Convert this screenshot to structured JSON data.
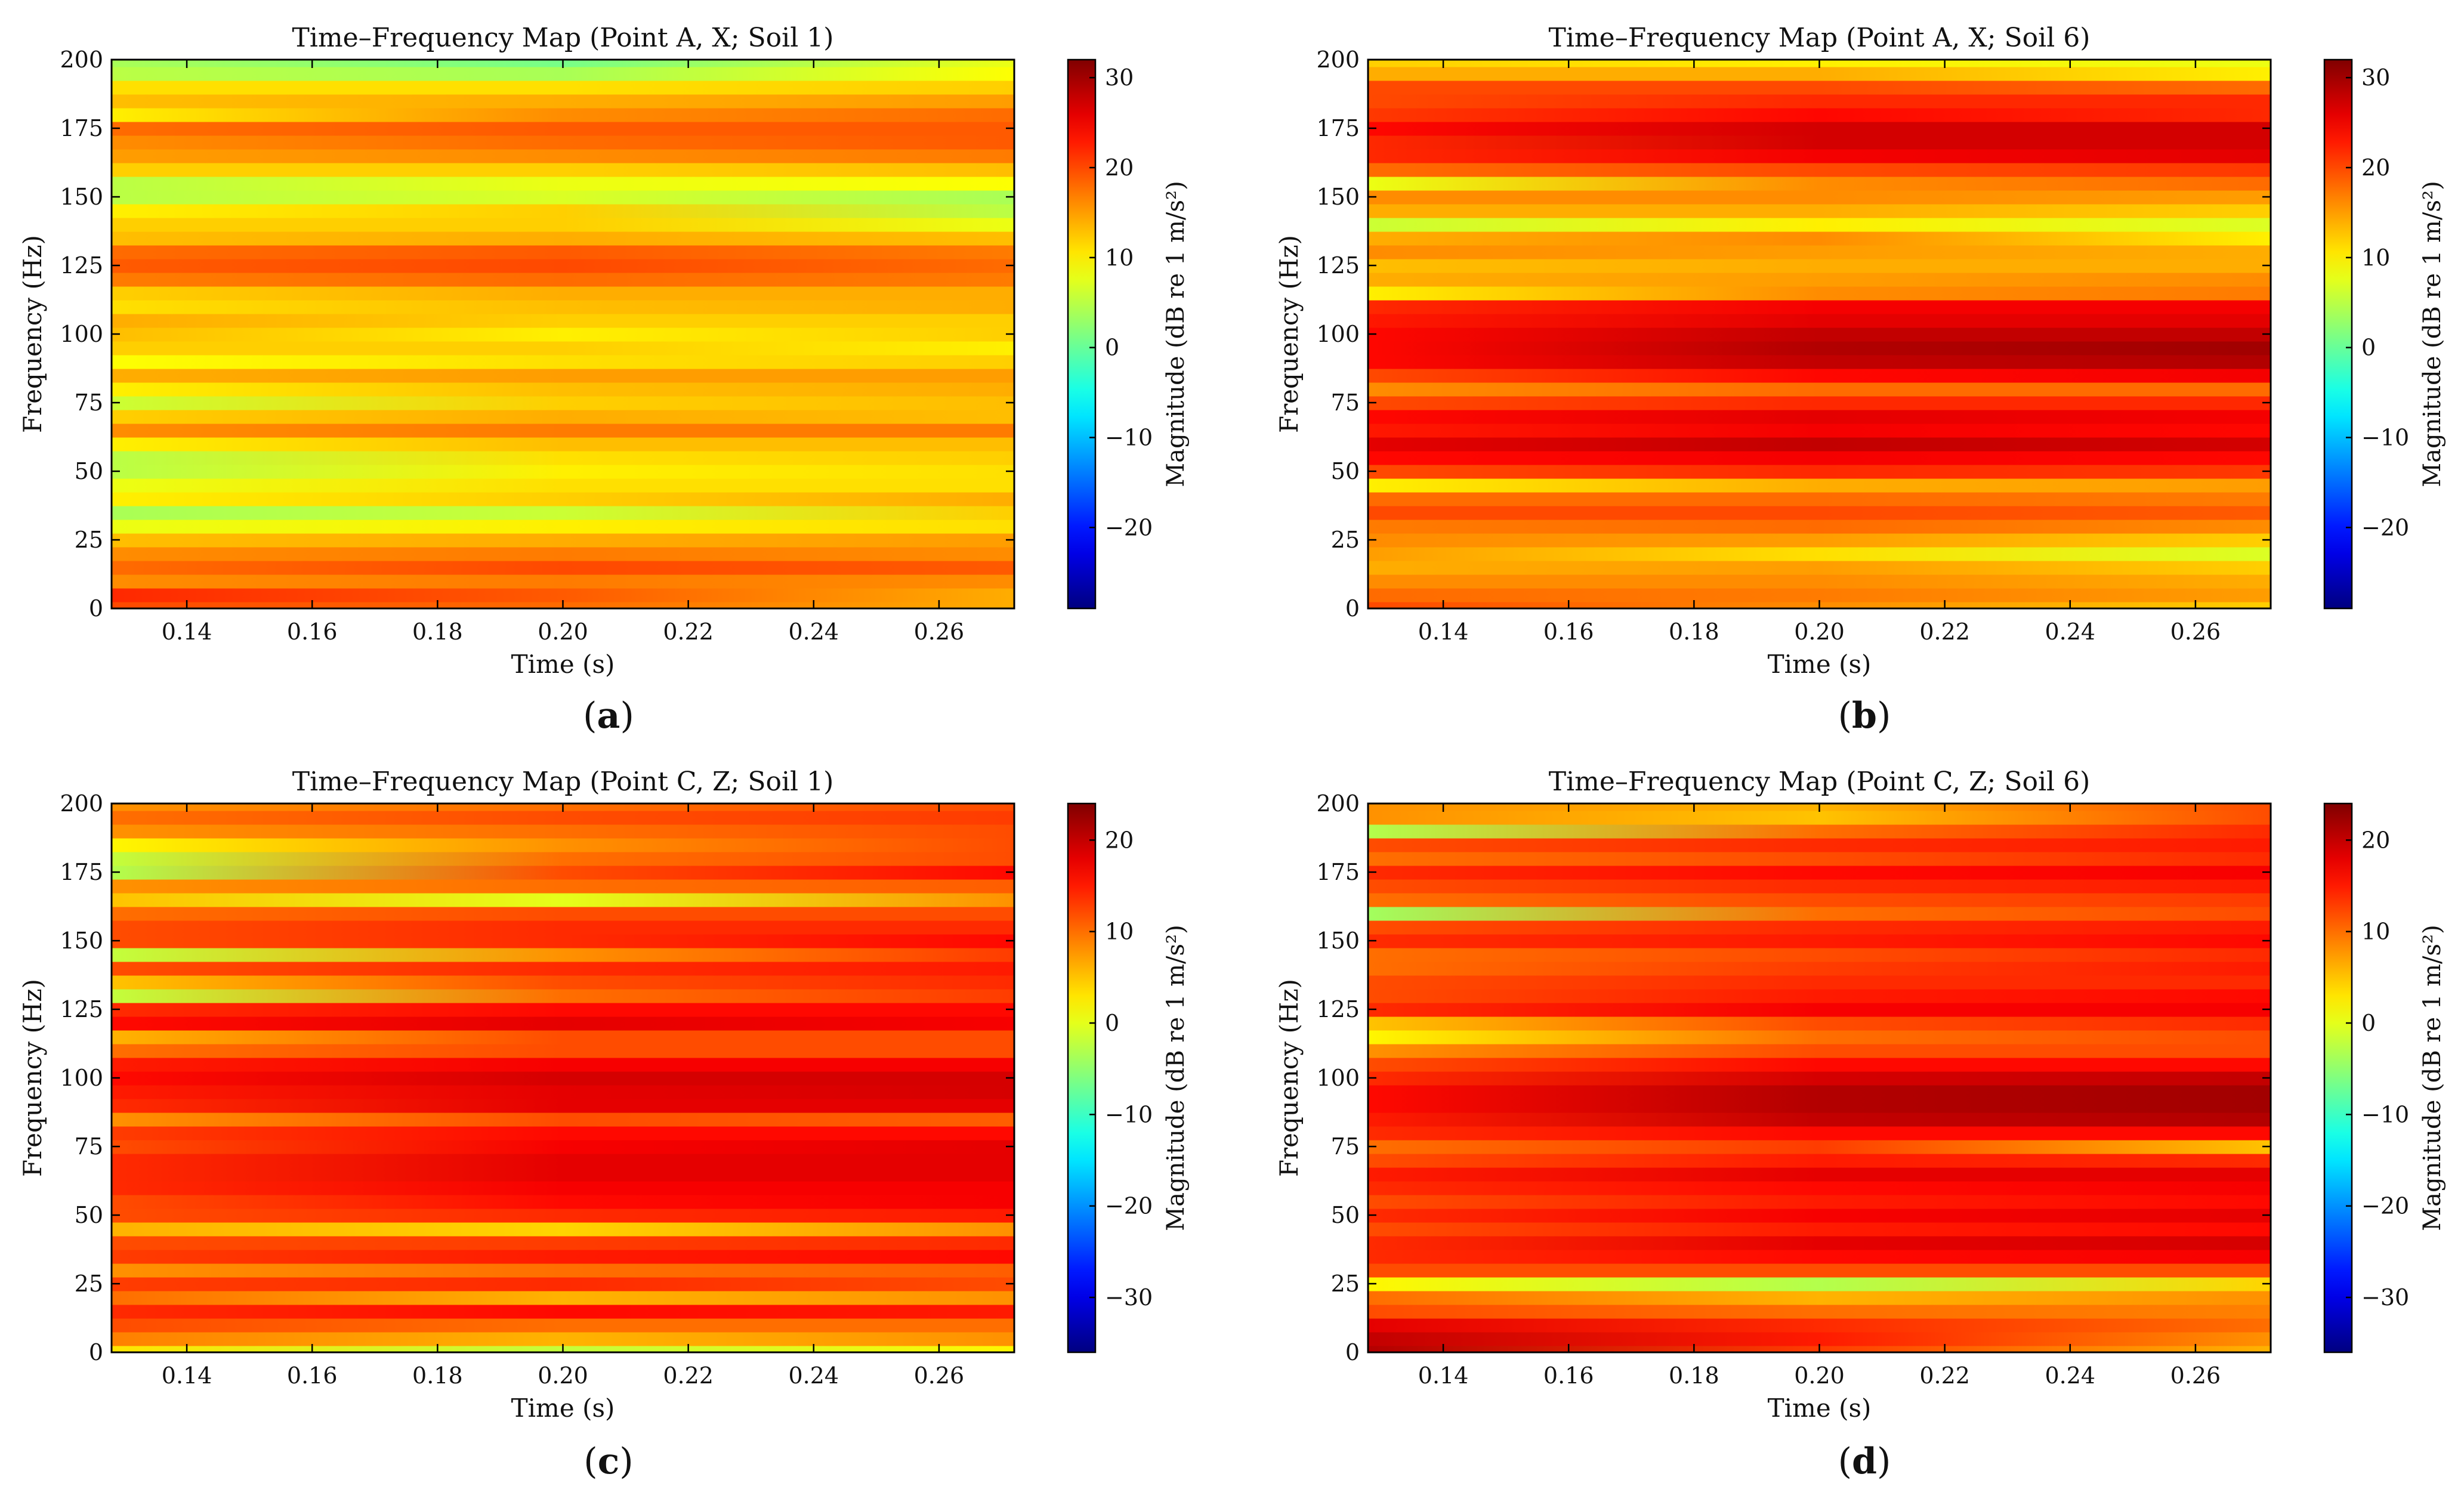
{
  "chart_data": [
    {
      "type": "heatmap",
      "panel_label": "a",
      "title": "Time–Frequency Map (Point A, X; Soil 1)",
      "xlabel": "Time (s)",
      "ylabel": "Frequency (Hz)",
      "xlim": [
        0.128,
        0.272
      ],
      "ylim": [
        0,
        200
      ],
      "xticks": [
        0.14,
        0.16,
        0.18,
        0.2,
        0.22,
        0.24,
        0.26
      ],
      "xtick_labels": [
        "0.14",
        "0.16",
        "0.18",
        "0.20",
        "0.22",
        "0.24",
        "0.26"
      ],
      "yticks": [
        0,
        25,
        50,
        75,
        100,
        125,
        150,
        175,
        200
      ],
      "ytick_labels": [
        "0",
        "25",
        "50",
        "75",
        "100",
        "125",
        "150",
        "175",
        "200"
      ],
      "colorbar": {
        "label": "Magnitude (dB re 1 m/s²)",
        "range": [
          -29,
          32
        ],
        "ticks": [
          30,
          20,
          10,
          0,
          -10,
          -20
        ],
        "tick_labels": [
          "30",
          "20",
          "10",
          "0",
          "−10",
          "−20"
        ]
      },
      "colormap": "jet",
      "band_freqs": [
        0,
        5,
        10,
        15,
        20,
        25,
        30,
        35,
        40,
        45,
        50,
        55,
        60,
        65,
        70,
        75,
        80,
        85,
        90,
        95,
        100,
        105,
        110,
        115,
        120,
        125,
        130,
        135,
        140,
        145,
        150,
        155,
        160,
        165,
        170,
        175,
        180,
        185,
        190,
        195,
        200
      ],
      "band_times": [
        0.128,
        0.2,
        0.272
      ],
      "magnitude_db": [
        [
          20,
          18,
          14
        ],
        [
          22,
          19,
          14
        ],
        [
          16,
          17,
          16
        ],
        [
          18,
          20,
          19
        ],
        [
          16,
          17,
          16
        ],
        [
          13,
          14,
          15
        ],
        [
          8,
          10,
          11
        ],
        [
          4,
          6,
          12
        ],
        [
          10,
          12,
          14
        ],
        [
          8,
          11,
          11
        ],
        [
          5,
          10,
          11
        ],
        [
          5,
          11,
          12
        ],
        [
          10,
          13,
          13
        ],
        [
          16,
          17,
          17
        ],
        [
          12,
          14,
          13
        ],
        [
          6,
          12,
          13
        ],
        [
          10,
          13,
          14
        ],
        [
          14,
          15,
          15
        ],
        [
          9,
          11,
          12
        ],
        [
          12,
          12,
          10
        ],
        [
          13,
          10,
          12
        ],
        [
          14,
          12,
          12
        ],
        [
          11,
          13,
          14
        ],
        [
          12,
          14,
          14
        ],
        [
          17,
          18,
          17
        ],
        [
          19,
          20,
          18
        ],
        [
          18,
          19,
          17
        ],
        [
          13,
          14,
          13
        ],
        [
          12,
          12,
          8
        ],
        [
          10,
          12,
          5
        ],
        [
          5,
          7,
          4
        ],
        [
          5,
          8,
          9
        ],
        [
          12,
          12,
          13
        ],
        [
          15,
          16,
          17
        ],
        [
          16,
          18,
          19
        ],
        [
          18,
          19,
          19
        ],
        [
          10,
          16,
          18
        ],
        [
          13,
          14,
          15
        ],
        [
          11,
          11,
          12
        ],
        [
          5,
          4,
          9
        ],
        [
          4,
          1,
          8
        ]
      ]
    },
    {
      "type": "heatmap",
      "panel_label": "b",
      "title": "Time–Frequency Map (Point A, X; Soil 6)",
      "xlabel": "Time (s)",
      "ylabel": "Frequency (Hz)",
      "xlim": [
        0.128,
        0.272
      ],
      "ylim": [
        0,
        200
      ],
      "xticks": [
        0.14,
        0.16,
        0.18,
        0.2,
        0.22,
        0.24,
        0.26
      ],
      "xtick_labels": [
        "0.14",
        "0.16",
        "0.18",
        "0.20",
        "0.22",
        "0.24",
        "0.26"
      ],
      "yticks": [
        0,
        25,
        50,
        75,
        100,
        125,
        150,
        175,
        200
      ],
      "ytick_labels": [
        "0",
        "25",
        "50",
        "75",
        "100",
        "125",
        "150",
        "175",
        "200"
      ],
      "colorbar": {
        "label": "Magnitude (dB re 1 m/s²)",
        "range": [
          -29,
          32
        ],
        "ticks": [
          30,
          20,
          10,
          0,
          -10,
          -20
        ],
        "tick_labels": [
          "30",
          "20",
          "10",
          "0",
          "−10",
          "−20"
        ]
      },
      "colormap": "jet",
      "band_freqs": [
        0,
        5,
        10,
        15,
        20,
        25,
        30,
        35,
        40,
        45,
        50,
        55,
        60,
        65,
        70,
        75,
        80,
        85,
        90,
        95,
        100,
        105,
        110,
        115,
        120,
        125,
        130,
        135,
        140,
        145,
        150,
        155,
        160,
        165,
        170,
        175,
        180,
        185,
        190,
        195,
        200
      ],
      "band_times": [
        0.128,
        0.2,
        0.272
      ],
      "magnitude_db": [
        [
          20,
          16,
          12
        ],
        [
          18,
          17,
          15
        ],
        [
          16,
          16,
          14
        ],
        [
          14,
          15,
          12
        ],
        [
          15,
          11,
          7
        ],
        [
          16,
          15,
          12
        ],
        [
          17,
          18,
          16
        ],
        [
          20,
          20,
          19
        ],
        [
          18,
          18,
          17
        ],
        [
          10,
          14,
          15
        ],
        [
          20,
          22,
          21
        ],
        [
          24,
          25,
          24
        ],
        [
          26,
          28,
          27
        ],
        [
          23,
          25,
          24
        ],
        [
          24,
          26,
          25
        ],
        [
          20,
          22,
          22
        ],
        [
          16,
          18,
          18
        ],
        [
          20,
          24,
          25
        ],
        [
          24,
          28,
          29
        ],
        [
          24,
          29,
          30
        ],
        [
          24,
          28,
          28
        ],
        [
          23,
          26,
          26
        ],
        [
          22,
          25,
          25
        ],
        [
          10,
          16,
          17
        ],
        [
          14,
          15,
          16
        ],
        [
          13,
          14,
          14
        ],
        [
          16,
          15,
          14
        ],
        [
          14,
          16,
          10
        ],
        [
          6,
          10,
          7
        ],
        [
          14,
          14,
          12
        ],
        [
          16,
          16,
          15
        ],
        [
          8,
          16,
          18
        ],
        [
          18,
          20,
          21
        ],
        [
          22,
          25,
          26
        ],
        [
          22,
          27,
          27
        ],
        [
          24,
          27,
          27
        ],
        [
          21,
          24,
          22
        ],
        [
          20,
          22,
          22
        ],
        [
          20,
          20,
          18
        ],
        [
          14,
          14,
          10
        ],
        [
          12,
          10,
          8
        ]
      ]
    },
    {
      "type": "heatmap",
      "panel_label": "c",
      "title": "Time–Frequency Map (Point C, Z; Soil 1)",
      "xlabel": "Time (s)",
      "ylabel": "Frequency (Hz)",
      "xlim": [
        0.128,
        0.272
      ],
      "ylim": [
        0,
        200
      ],
      "xticks": [
        0.14,
        0.16,
        0.18,
        0.2,
        0.22,
        0.24,
        0.26
      ],
      "xtick_labels": [
        "0.14",
        "0.16",
        "0.18",
        "0.20",
        "0.22",
        "0.24",
        "0.26"
      ],
      "yticks": [
        0,
        25,
        50,
        75,
        100,
        125,
        150,
        175,
        200
      ],
      "ytick_labels": [
        "0",
        "25",
        "50",
        "75",
        "100",
        "125",
        "150",
        "175",
        "200"
      ],
      "colorbar": {
        "label": "Magnitude (dB re 1 m/s²)",
        "range": [
          -36,
          24
        ],
        "ticks": [
          20,
          10,
          0,
          -10,
          -20,
          -30
        ],
        "tick_labels": [
          "20",
          "10",
          "0",
          "−10",
          "−20",
          "−30"
        ]
      },
      "colormap": "jet",
      "band_freqs": [
        0,
        5,
        10,
        15,
        20,
        25,
        30,
        35,
        40,
        45,
        50,
        55,
        60,
        65,
        70,
        75,
        80,
        85,
        90,
        95,
        100,
        105,
        110,
        115,
        120,
        125,
        130,
        135,
        140,
        145,
        150,
        155,
        160,
        165,
        170,
        175,
        180,
        185,
        190,
        195,
        200
      ],
      "band_times": [
        0.128,
        0.2,
        0.272
      ],
      "magnitude_db": [
        [
          3,
          -2,
          2
        ],
        [
          9,
          6,
          8
        ],
        [
          12,
          10,
          10
        ],
        [
          14,
          16,
          15
        ],
        [
          10,
          6,
          8
        ],
        [
          13,
          14,
          12
        ],
        [
          8,
          10,
          11
        ],
        [
          13,
          15,
          16
        ],
        [
          12,
          13,
          14
        ],
        [
          6,
          4,
          8
        ],
        [
          12,
          14,
          15
        ],
        [
          12,
          16,
          17
        ],
        [
          14,
          17,
          17
        ],
        [
          14,
          18,
          18
        ],
        [
          14,
          18,
          18
        ],
        [
          12,
          17,
          18
        ],
        [
          13,
          16,
          16
        ],
        [
          8,
          12,
          11
        ],
        [
          14,
          18,
          18
        ],
        [
          15,
          18,
          19
        ],
        [
          16,
          19,
          19
        ],
        [
          15,
          17,
          17
        ],
        [
          10,
          12,
          12
        ],
        [
          6,
          12,
          12
        ],
        [
          16,
          18,
          17
        ],
        [
          14,
          16,
          16
        ],
        [
          -2,
          10,
          13
        ],
        [
          5,
          12,
          14
        ],
        [
          12,
          14,
          15
        ],
        [
          -2,
          8,
          13
        ],
        [
          12,
          14,
          16
        ],
        [
          12,
          14,
          14
        ],
        [
          10,
          12,
          12
        ],
        [
          5,
          0,
          8
        ],
        [
          8,
          10,
          11
        ],
        [
          -3,
          12,
          16
        ],
        [
          -2,
          10,
          12
        ],
        [
          2,
          8,
          12
        ],
        [
          8,
          10,
          12
        ],
        [
          10,
          12,
          13
        ],
        [
          8,
          10,
          12
        ]
      ]
    },
    {
      "type": "heatmap",
      "panel_label": "d",
      "title": "Time–Frequency Map (Point C, Z; Soil 6)",
      "xlabel": "Time (s)",
      "ylabel": "Frequency (Hz)",
      "xlim": [
        0.128,
        0.272
      ],
      "ylim": [
        0,
        200
      ],
      "xticks": [
        0.14,
        0.16,
        0.18,
        0.2,
        0.22,
        0.24,
        0.26
      ],
      "xtick_labels": [
        "0.14",
        "0.16",
        "0.18",
        "0.20",
        "0.22",
        "0.24",
        "0.26"
      ],
      "yticks": [
        0,
        25,
        50,
        75,
        100,
        125,
        150,
        175,
        200
      ],
      "ytick_labels": [
        "0",
        "25",
        "50",
        "75",
        "100",
        "125",
        "150",
        "175",
        "200"
      ],
      "colorbar": {
        "label": "Magnitude (dB re 1 m/s²)",
        "range": [
          -36,
          24
        ],
        "ticks": [
          20,
          10,
          0,
          -10,
          -20,
          -30
        ],
        "tick_labels": [
          "20",
          "10",
          "0",
          "−10",
          "−20",
          "−30"
        ]
      },
      "colormap": "jet",
      "band_freqs": [
        0,
        5,
        10,
        15,
        20,
        25,
        30,
        35,
        40,
        45,
        50,
        55,
        60,
        65,
        70,
        75,
        80,
        85,
        90,
        95,
        100,
        105,
        110,
        115,
        120,
        125,
        130,
        135,
        140,
        145,
        150,
        155,
        160,
        165,
        170,
        175,
        180,
        185,
        190,
        195,
        200
      ],
      "band_times": [
        0.128,
        0.2,
        0.272
      ],
      "magnitude_db": [
        [
          21,
          13,
          6
        ],
        [
          20,
          15,
          8
        ],
        [
          18,
          14,
          10
        ],
        [
          12,
          10,
          9
        ],
        [
          10,
          6,
          8
        ],
        [
          2,
          -3,
          4
        ],
        [
          12,
          12,
          12
        ],
        [
          14,
          16,
          17
        ],
        [
          14,
          18,
          19
        ],
        [
          12,
          15,
          16
        ],
        [
          14,
          17,
          18
        ],
        [
          12,
          15,
          16
        ],
        [
          14,
          16,
          17
        ],
        [
          15,
          18,
          18
        ],
        [
          12,
          15,
          14
        ],
        [
          10,
          13,
          5
        ],
        [
          14,
          16,
          16
        ],
        [
          15,
          20,
          21
        ],
        [
          16,
          21,
          22
        ],
        [
          16,
          21,
          22
        ],
        [
          14,
          19,
          20
        ],
        [
          12,
          16,
          16
        ],
        [
          8,
          12,
          12
        ],
        [
          2,
          10,
          12
        ],
        [
          5,
          12,
          14
        ],
        [
          14,
          17,
          17
        ],
        [
          12,
          15,
          16
        ],
        [
          12,
          14,
          14
        ],
        [
          10,
          13,
          15
        ],
        [
          10,
          12,
          14
        ],
        [
          14,
          15,
          16
        ],
        [
          12,
          14,
          15
        ],
        [
          -4,
          10,
          12
        ],
        [
          10,
          12,
          13
        ],
        [
          12,
          14,
          15
        ],
        [
          14,
          16,
          17
        ],
        [
          10,
          12,
          14
        ],
        [
          12,
          14,
          15
        ],
        [
          -3,
          10,
          14
        ],
        [
          8,
          5,
          12
        ],
        [
          8,
          6,
          12
        ]
      ]
    }
  ]
}
